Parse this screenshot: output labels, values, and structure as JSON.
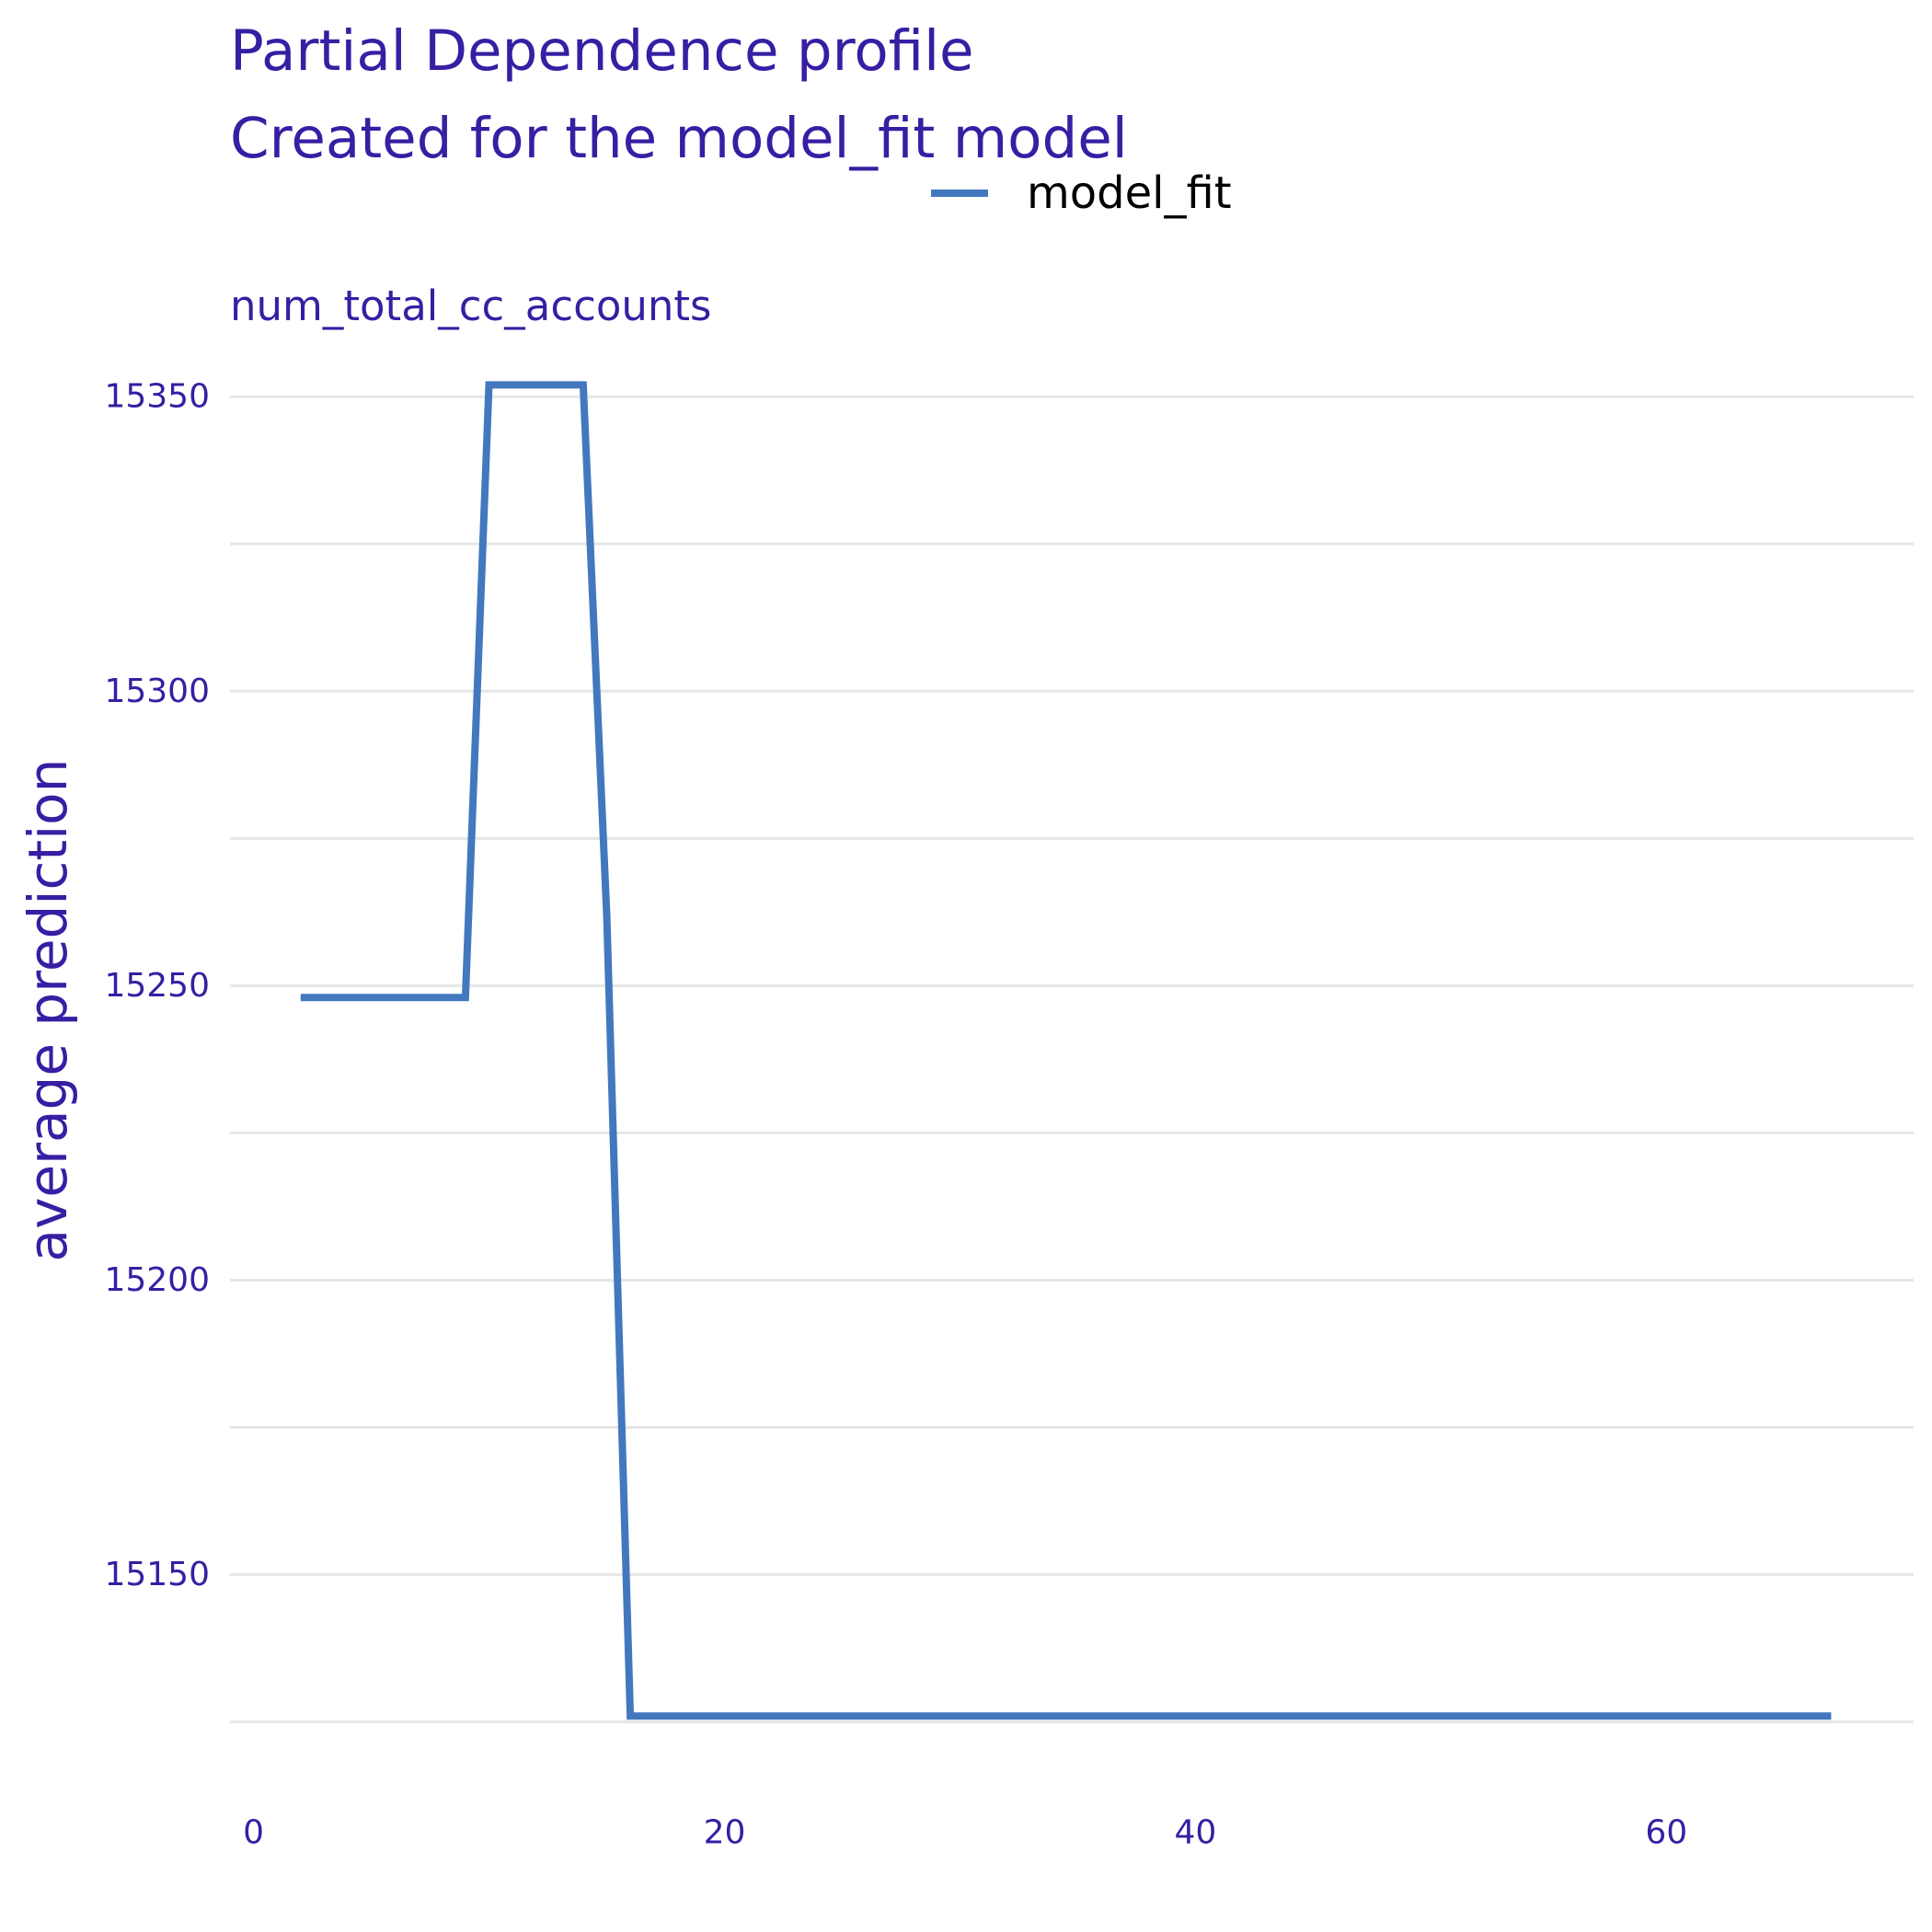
{
  "chart_data": {
    "type": "line",
    "title": "Partial Dependence profile",
    "subtitle": "Created for the model_fit model",
    "panel_title": "num_total_cc_accounts",
    "xlabel": "",
    "ylabel": "average prediction",
    "xlim": [
      -1,
      70.5
    ],
    "ylim": [
      15119,
      15358
    ],
    "x_ticks": [
      0,
      20,
      40,
      60
    ],
    "y_ticks": [
      15150,
      15200,
      15250,
      15300,
      15350
    ],
    "y_grid": [
      15125,
      15150,
      15175,
      15200,
      15225,
      15250,
      15275,
      15300,
      15325,
      15350
    ],
    "grid": true,
    "legend": "top",
    "colors": {
      "series": "#4378bf",
      "text": "#371ea3",
      "grid": "#e6e6e6"
    },
    "series": [
      {
        "name": "model_fit",
        "x": [
          2,
          9,
          10,
          14,
          15,
          16,
          67
        ],
        "y": [
          15248,
          15248,
          15352,
          15352,
          15262,
          15126,
          15126
        ]
      }
    ]
  }
}
